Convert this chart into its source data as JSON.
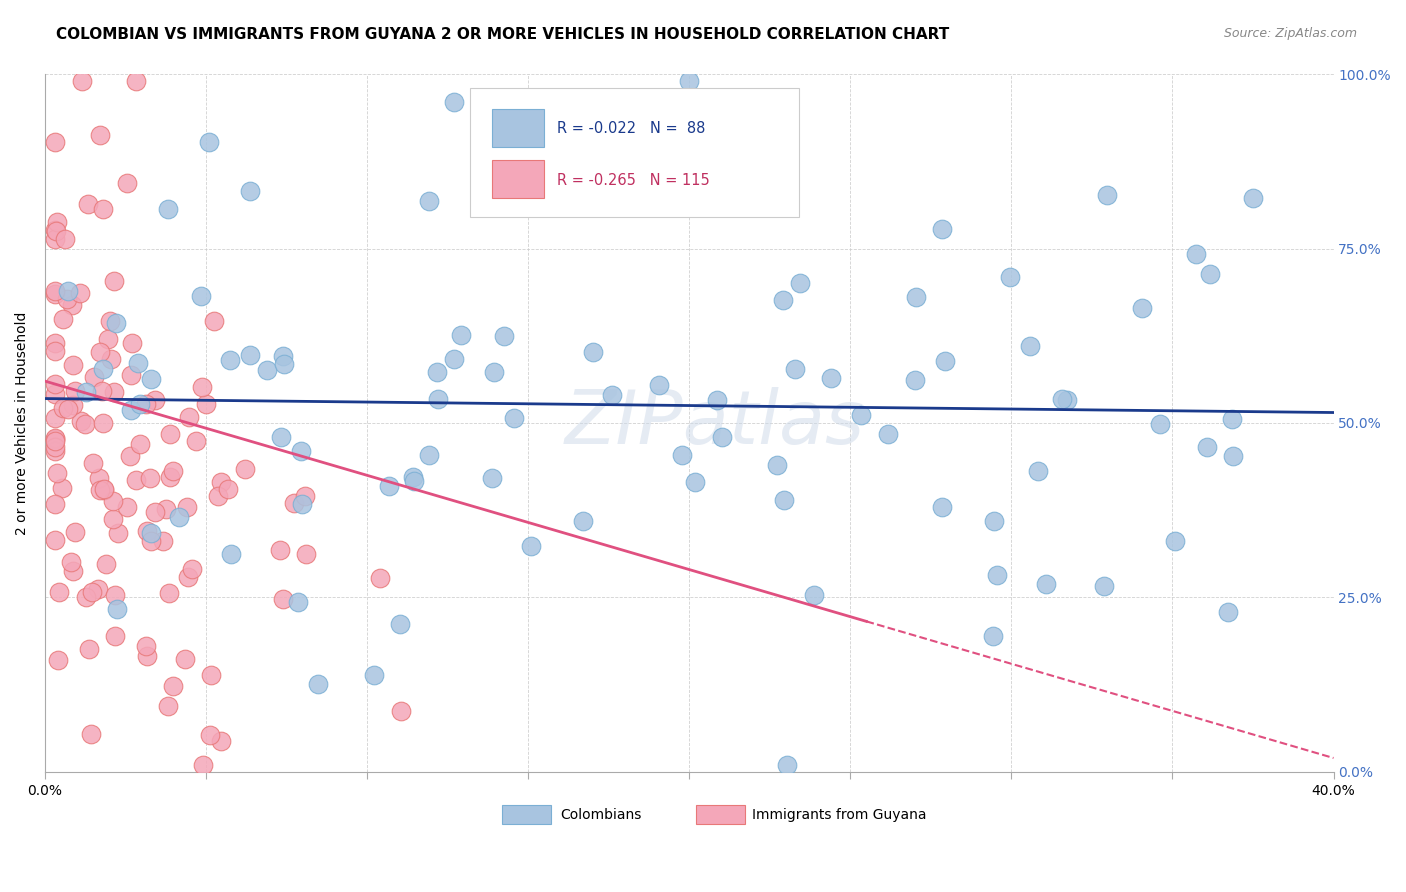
{
  "title": "COLOMBIAN VS IMMIGRANTS FROM GUYANA 2 OR MORE VEHICLES IN HOUSEHOLD CORRELATION CHART",
  "source": "Source: ZipAtlas.com",
  "ylabel": "2 or more Vehicles in Household",
  "yaxis_labels": [
    "0.0%",
    "25.0%",
    "50.0%",
    "75.0%",
    "100.0%"
  ],
  "yaxis_ticks": [
    0.0,
    0.25,
    0.5,
    0.75,
    1.0
  ],
  "xlim": [
    0.0,
    0.4
  ],
  "ylim": [
    0.0,
    1.0
  ],
  "colombians_R": -0.022,
  "colombians_N": 88,
  "guyana_R": -0.265,
  "guyana_N": 115,
  "blue_scatter_color": "#a8c4e0",
  "blue_scatter_edge": "#7bafd4",
  "pink_scatter_color": "#f4a7b9",
  "pink_scatter_edge": "#e87878",
  "blue_line_color": "#1a3a8c",
  "pink_line_color": "#e05080",
  "watermark": "ZIPatlas",
  "title_fontsize": 11,
  "source_fontsize": 9,
  "legend_blue_text_color": "#1a3a8c",
  "legend_pink_text_color": "#c03060",
  "right_axis_color": "#4472c4"
}
